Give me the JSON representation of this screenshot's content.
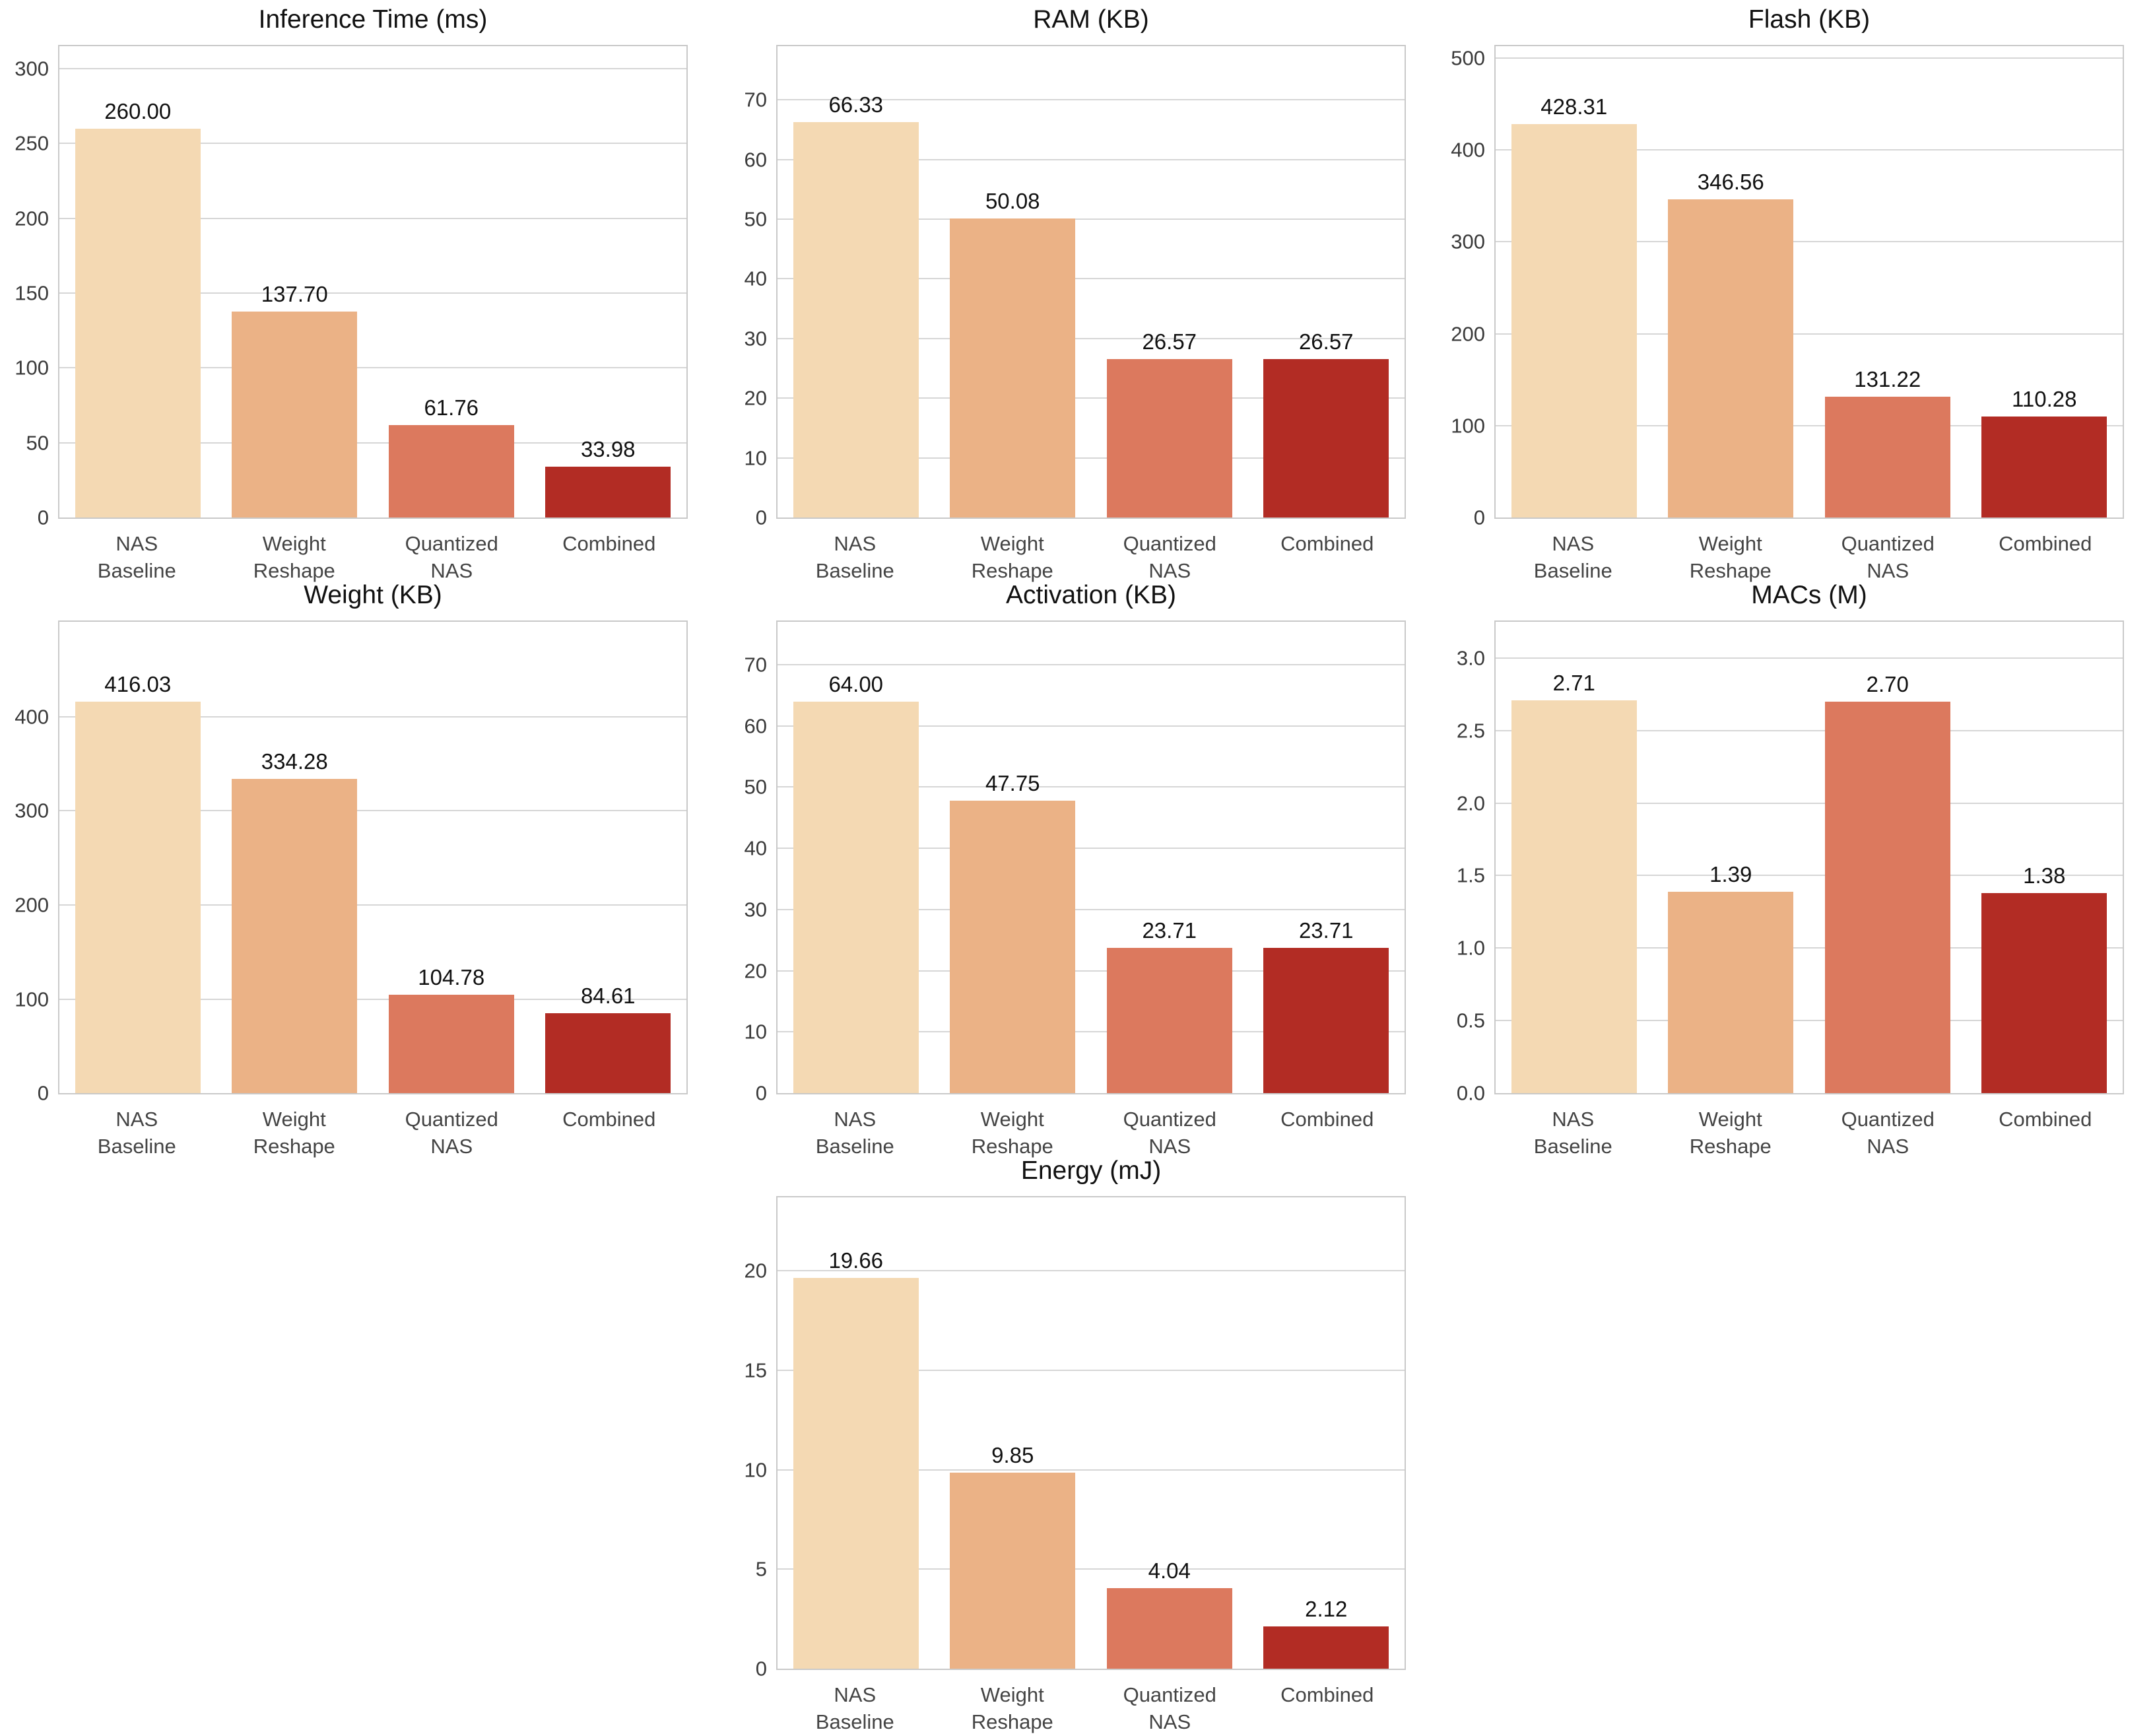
{
  "figure": {
    "background": "#ffffff",
    "layout": "3x3-grid-last-centered"
  },
  "palette": {
    "bar_colors": [
      "#f4d9b3",
      "#ebb286",
      "#dc795e",
      "#b22c24"
    ],
    "grid_color": "#d6d6d6",
    "spine_color": "#c9c9c9",
    "title_color": "#111111",
    "ytick_color": "#3a3a3a",
    "xtick_color": "#444444",
    "value_label_color": "#111111"
  },
  "categories": [
    [
      "NAS",
      "Baseline"
    ],
    [
      "Weight",
      "Reshape"
    ],
    [
      "Quantized",
      "NAS"
    ],
    [
      "Combined"
    ]
  ],
  "chart_data": [
    {
      "type": "bar",
      "id": "inference-time",
      "title": "Inference Time (ms)",
      "values": [
        260.0,
        137.7,
        61.76,
        33.98
      ],
      "value_labels": [
        "260.00",
        "137.70",
        "61.76",
        "33.98"
      ],
      "ylim": [
        0,
        315
      ],
      "yticks": [
        {
          "v": 0,
          "label": "0"
        },
        {
          "v": 50,
          "label": "50"
        },
        {
          "v": 100,
          "label": "100"
        },
        {
          "v": 150,
          "label": "150"
        },
        {
          "v": 200,
          "label": "200"
        },
        {
          "v": 250,
          "label": "250"
        },
        {
          "v": 300,
          "label": "300"
        }
      ],
      "grid": true,
      "legend": "none"
    },
    {
      "type": "bar",
      "id": "ram",
      "title": "RAM (KB)",
      "values": [
        66.33,
        50.08,
        26.57,
        26.57
      ],
      "value_labels": [
        "66.33",
        "50.08",
        "26.57",
        "26.57"
      ],
      "ylim": [
        0,
        79
      ],
      "yticks": [
        {
          "v": 0,
          "label": "0"
        },
        {
          "v": 10,
          "label": "10"
        },
        {
          "v": 20,
          "label": "20"
        },
        {
          "v": 30,
          "label": "30"
        },
        {
          "v": 40,
          "label": "40"
        },
        {
          "v": 50,
          "label": "50"
        },
        {
          "v": 60,
          "label": "60"
        },
        {
          "v": 70,
          "label": "70"
        }
      ],
      "grid": true,
      "legend": "none"
    },
    {
      "type": "bar",
      "id": "flash",
      "title": "Flash (KB)",
      "values": [
        428.31,
        346.56,
        131.22,
        110.28
      ],
      "value_labels": [
        "428.31",
        "346.56",
        "131.22",
        "110.28"
      ],
      "ylim": [
        0,
        513
      ],
      "yticks": [
        {
          "v": 0,
          "label": "0"
        },
        {
          "v": 100,
          "label": "100"
        },
        {
          "v": 200,
          "label": "200"
        },
        {
          "v": 300,
          "label": "300"
        },
        {
          "v": 400,
          "label": "400"
        },
        {
          "v": 500,
          "label": "500"
        }
      ],
      "grid": true,
      "legend": "none"
    },
    {
      "type": "bar",
      "id": "weight",
      "title": "Weight (KB)",
      "values": [
        416.03,
        334.28,
        104.78,
        84.61
      ],
      "value_labels": [
        "416.03",
        "334.28",
        "104.78",
        "84.61"
      ],
      "ylim": [
        0,
        501
      ],
      "yticks": [
        {
          "v": 0,
          "label": "0"
        },
        {
          "v": 100,
          "label": "100"
        },
        {
          "v": 200,
          "label": "200"
        },
        {
          "v": 300,
          "label": "300"
        },
        {
          "v": 400,
          "label": "400"
        }
      ],
      "grid": true,
      "legend": "none"
    },
    {
      "type": "bar",
      "id": "activation",
      "title": "Activation (KB)",
      "values": [
        64.0,
        47.75,
        23.71,
        23.71
      ],
      "value_labels": [
        "64.00",
        "47.75",
        "23.71",
        "23.71"
      ],
      "ylim": [
        0,
        77
      ],
      "yticks": [
        {
          "v": 0,
          "label": "0"
        },
        {
          "v": 10,
          "label": "10"
        },
        {
          "v": 20,
          "label": "20"
        },
        {
          "v": 30,
          "label": "30"
        },
        {
          "v": 40,
          "label": "40"
        },
        {
          "v": 50,
          "label": "50"
        },
        {
          "v": 60,
          "label": "60"
        },
        {
          "v": 70,
          "label": "70"
        }
      ],
      "grid": true,
      "legend": "none"
    },
    {
      "type": "bar",
      "id": "macs",
      "title": "MACs (M)",
      "values": [
        2.71,
        1.39,
        2.7,
        1.38
      ],
      "value_labels": [
        "2.71",
        "1.39",
        "2.70",
        "1.38"
      ],
      "ylim": [
        0,
        3.25
      ],
      "yticks": [
        {
          "v": 0,
          "label": "0.0"
        },
        {
          "v": 0.5,
          "label": "0.5"
        },
        {
          "v": 1.0,
          "label": "1.0"
        },
        {
          "v": 1.5,
          "label": "1.5"
        },
        {
          "v": 2.0,
          "label": "2.0"
        },
        {
          "v": 2.5,
          "label": "2.5"
        },
        {
          "v": 3.0,
          "label": "3.0"
        }
      ],
      "grid": true,
      "legend": "none"
    },
    {
      "type": "bar",
      "id": "energy",
      "title": "Energy (mJ)",
      "values": [
        19.66,
        9.85,
        4.04,
        2.12
      ],
      "value_labels": [
        "19.66",
        "9.85",
        "4.04",
        "2.12"
      ],
      "ylim": [
        0,
        23.7
      ],
      "yticks": [
        {
          "v": 0,
          "label": "0"
        },
        {
          "v": 5,
          "label": "5"
        },
        {
          "v": 10,
          "label": "10"
        },
        {
          "v": 15,
          "label": "15"
        },
        {
          "v": 20,
          "label": "20"
        }
      ],
      "grid": true,
      "legend": "none",
      "grid_column": "2"
    }
  ]
}
